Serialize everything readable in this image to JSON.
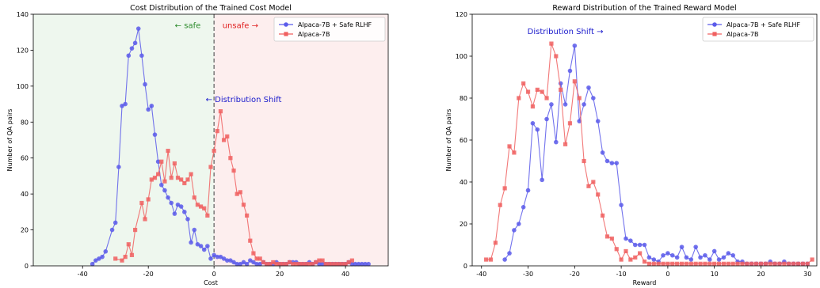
{
  "chart_data": [
    {
      "type": "line",
      "title": "Cost Distribution of the Trained Cost Model",
      "xlabel": "Cost",
      "ylabel": "Number of QA pairs",
      "xlim": [
        -55,
        53
      ],
      "ylim": [
        0,
        140
      ],
      "xticks": [
        -40,
        -20,
        0,
        20,
        40
      ],
      "yticks": [
        0,
        20,
        40,
        60,
        80,
        100,
        120,
        140
      ],
      "grid": false,
      "legend": "top-right",
      "regions": [
        {
          "name": "safe",
          "x0": -55,
          "x1": 0,
          "color": "#eef7ee"
        },
        {
          "name": "unsafe",
          "x0": 0,
          "x1": 53,
          "color": "#fdeeee"
        }
      ],
      "threshold_x": 0,
      "annotations": [
        {
          "text": "← safe",
          "x": -8,
          "y": 134,
          "color": "#2a8a2a"
        },
        {
          "text": "unsafe →",
          "x": 8,
          "y": 134,
          "color": "#e02020"
        },
        {
          "text": "← Distribution Shift",
          "x": 9,
          "y": 93,
          "color": "#1a1acc"
        }
      ],
      "series": [
        {
          "name": "Alpaca-7B + Safe RLHF",
          "color": "#5b5bea",
          "marker": "circle",
          "x": [
            -37,
            -36,
            -35,
            -34,
            -33,
            -31,
            -30,
            -29,
            -28,
            -27,
            -26,
            -25,
            -24,
            -23,
            -22,
            -21,
            -20,
            -19,
            -18,
            -17,
            -16,
            -15,
            -14,
            -13,
            -12,
            -11,
            -10,
            -9,
            -8,
            -7,
            -6,
            -5,
            -4,
            -3,
            -2,
            -1,
            0,
            1,
            2,
            3,
            4,
            5,
            6,
            7,
            8,
            9,
            10,
            11,
            12,
            13,
            14,
            15,
            16,
            17,
            18,
            19,
            20,
            21,
            22,
            23,
            24,
            25,
            26,
            27,
            28,
            29,
            30,
            31,
            32,
            33,
            34,
            35,
            36,
            37,
            38,
            39,
            40,
            41,
            42,
            43,
            44,
            45,
            46,
            47
          ],
          "y": [
            1,
            3,
            4,
            5,
            8,
            20,
            24,
            55,
            89,
            90,
            117,
            121,
            124,
            132,
            117,
            101,
            87,
            89,
            73,
            58,
            45,
            42,
            38,
            35,
            29,
            34,
            33,
            30,
            26,
            13,
            20,
            12,
            11,
            9,
            11,
            4,
            6,
            5,
            5,
            4,
            3,
            3,
            2,
            1,
            1,
            2,
            1,
            3,
            2,
            1,
            1,
            2,
            1,
            1,
            1,
            2,
            1,
            1,
            1,
            2,
            2,
            2,
            1,
            1,
            1,
            2,
            1,
            2,
            1,
            1,
            1,
            1,
            1,
            1,
            1,
            1,
            1,
            2,
            1,
            1,
            1,
            1,
            1,
            1
          ]
        },
        {
          "name": "Alpaca-7B",
          "color": "#f06060",
          "marker": "square",
          "x": [
            -30,
            -28,
            -27,
            -26,
            -25,
            -24,
            -22,
            -21,
            -20,
            -19,
            -18,
            -17,
            -16,
            -15,
            -14,
            -13,
            -12,
            -11,
            -10,
            -9,
            -8,
            -7,
            -6,
            -5,
            -4,
            -3,
            -2,
            -1,
            0,
            1,
            2,
            3,
            4,
            5,
            6,
            7,
            8,
            9,
            10,
            11,
            12,
            13,
            14,
            15,
            16,
            17,
            18,
            19,
            20,
            21,
            22,
            23,
            24,
            25,
            26,
            27,
            28,
            29,
            30,
            31,
            32,
            33,
            34,
            35,
            36,
            37,
            38,
            39,
            40,
            41,
            42
          ],
          "y": [
            4,
            3,
            5,
            12,
            6,
            20,
            35,
            26,
            37,
            48,
            49,
            51,
            58,
            47,
            64,
            49,
            57,
            49,
            48,
            46,
            48,
            51,
            38,
            34,
            33,
            32,
            28,
            55,
            64,
            75,
            86,
            70,
            72,
            60,
            53,
            40,
            41,
            34,
            28,
            14,
            7,
            4,
            4,
            2,
            1,
            1,
            2,
            1,
            1,
            1,
            1,
            2,
            1,
            1,
            1,
            1,
            1,
            1,
            1,
            2,
            3,
            3,
            1,
            1,
            1,
            1,
            1,
            1,
            1,
            2,
            3
          ]
        }
      ]
    },
    {
      "type": "line",
      "title": "Reward Distribution of the Trained Reward Model",
      "xlabel": "Reward",
      "ylabel": "Number of QA pairs",
      "xlim": [
        -42,
        32
      ],
      "ylim": [
        0,
        120
      ],
      "xticks": [
        -40,
        -30,
        -20,
        -10,
        0,
        10,
        20,
        30
      ],
      "yticks": [
        0,
        20,
        40,
        60,
        80,
        100,
        120
      ],
      "grid": false,
      "legend": "top-right",
      "annotations": [
        {
          "text": "Distribution Shift →",
          "x": -22,
          "y": 112,
          "color": "#1a1acc"
        }
      ],
      "series": [
        {
          "name": "Alpaca-7B + Safe RLHF",
          "color": "#5b5bea",
          "marker": "circle",
          "x": [
            -35,
            -34,
            -33,
            -32,
            -31,
            -30,
            -29,
            -28,
            -27,
            -26,
            -25,
            -24,
            -23,
            -22,
            -21,
            -20,
            -19,
            -18,
            -17,
            -16,
            -15,
            -14,
            -13,
            -12,
            -11,
            -10,
            -9,
            -8,
            -7,
            -6,
            -5,
            -4,
            -3,
            -2,
            -1,
            0,
            1,
            2,
            3,
            4,
            5,
            6,
            7,
            8,
            9,
            10,
            11,
            12,
            13,
            14,
            15,
            16,
            17,
            18,
            19,
            20,
            21,
            22,
            23,
            24,
            25,
            26,
            27,
            28,
            29,
            30
          ],
          "y": [
            3,
            6,
            17,
            20,
            28,
            36,
            68,
            65,
            41,
            70,
            77,
            59,
            87,
            77,
            93,
            105,
            69,
            77,
            85,
            80,
            69,
            54,
            50,
            49,
            49,
            29,
            13,
            12,
            10,
            10,
            10,
            4,
            3,
            2,
            5,
            6,
            5,
            4,
            9,
            4,
            3,
            9,
            4,
            5,
            3,
            7,
            3,
            4,
            6,
            5,
            2,
            2,
            1,
            1,
            1,
            1,
            1,
            2,
            1,
            1,
            2,
            1,
            1,
            1,
            1,
            1
          ]
        },
        {
          "name": "Alpaca-7B",
          "color": "#f06060",
          "marker": "square",
          "x": [
            -39,
            -38,
            -37,
            -36,
            -35,
            -34,
            -33,
            -32,
            -31,
            -30,
            -29,
            -28,
            -27,
            -26,
            -25,
            -24,
            -23,
            -22,
            -21,
            -20,
            -19,
            -18,
            -17,
            -16,
            -15,
            -14,
            -13,
            -12,
            -11,
            -10,
            -9,
            -8,
            -7,
            -6,
            -5,
            -4,
            -3,
            -2,
            -1,
            0,
            1,
            2,
            3,
            4,
            5,
            6,
            7,
            8,
            9,
            10,
            11,
            12,
            13,
            14,
            15,
            16,
            17,
            18,
            19,
            20,
            21,
            22,
            23,
            24,
            25,
            26,
            27,
            28,
            29,
            30,
            31
          ],
          "y": [
            3,
            3,
            11,
            29,
            37,
            57,
            54,
            80,
            87,
            83,
            76,
            84,
            83,
            80,
            106,
            100,
            84,
            58,
            68,
            88,
            80,
            50,
            38,
            40,
            34,
            24,
            14,
            13,
            8,
            3,
            7,
            3,
            4,
            6,
            2,
            1,
            1,
            1,
            1,
            1,
            1,
            1,
            1,
            1,
            1,
            1,
            1,
            1,
            1,
            1,
            1,
            1,
            1,
            1,
            1,
            1,
            1,
            1,
            1,
            1,
            1,
            1,
            1,
            1,
            1,
            1,
            1,
            1,
            1,
            1,
            3
          ]
        }
      ]
    }
  ]
}
